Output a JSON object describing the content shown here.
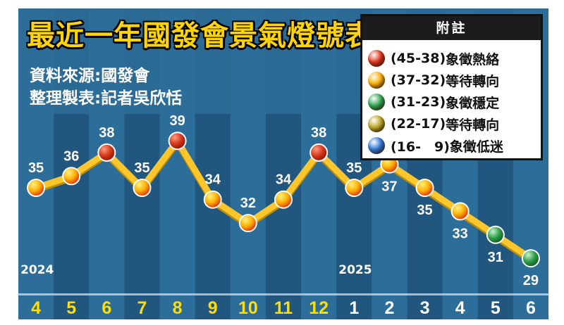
{
  "title": "最近一年國發會景氣燈號表",
  "source_line_1": "資料來源:國發會",
  "source_line_2": "整理製表:記者吳欣恬",
  "legend": {
    "title": "附註",
    "items": [
      {
        "range": "(45-38)",
        "text": "象徵熱絡",
        "color": "#e3341a"
      },
      {
        "range": "(37-32)",
        "text": "等待轉向",
        "color": "#ffb000"
      },
      {
        "range": "(31-23)",
        "text": "象徵穩定",
        "color": "#32a853"
      },
      {
        "range": "(22-17)",
        "text": "等待轉向",
        "color": "#bfa824"
      },
      {
        "range": "(16-　9)",
        "text": "象徵低迷",
        "color": "#2f7ad8"
      }
    ]
  },
  "year_labels": [
    {
      "text": "2024",
      "index": 0
    },
    {
      "text": "2025",
      "index": 9
    }
  ],
  "chart_data": {
    "type": "line",
    "categories": [
      "4",
      "5",
      "6",
      "7",
      "8",
      "9",
      "10",
      "11",
      "12",
      "1",
      "2",
      "3",
      "4",
      "5",
      "6"
    ],
    "values": [
      35,
      36,
      38,
      35,
      39,
      34,
      32,
      34,
      38,
      35,
      37,
      35,
      33,
      31,
      29
    ],
    "signal_colors": [
      "yellow-red",
      "yellow-red",
      "red",
      "yellow-red",
      "red",
      "yellow-red",
      "yellow-red",
      "yellow-red",
      "red",
      "yellow-red",
      "yellow-red",
      "yellow-red",
      "yellow-red",
      "green",
      "green"
    ],
    "label_positions": [
      "above",
      "above",
      "above",
      "above",
      "above",
      "above",
      "above",
      "above",
      "above",
      "above",
      "below",
      "below",
      "below",
      "below",
      "below"
    ],
    "month_colors": [
      "#ffde00",
      "#ffde00",
      "#ffde00",
      "#ffde00",
      "#ffde00",
      "#ffde00",
      "#ffde00",
      "#ffde00",
      "#ffde00",
      "#ffffff",
      "#ffffff",
      "#ffffff",
      "#ffffff",
      "#ffffff",
      "#ffffff"
    ],
    "line_color": "#ffc629",
    "background_colors": [
      "#2d6d99",
      "#21577f"
    ]
  }
}
